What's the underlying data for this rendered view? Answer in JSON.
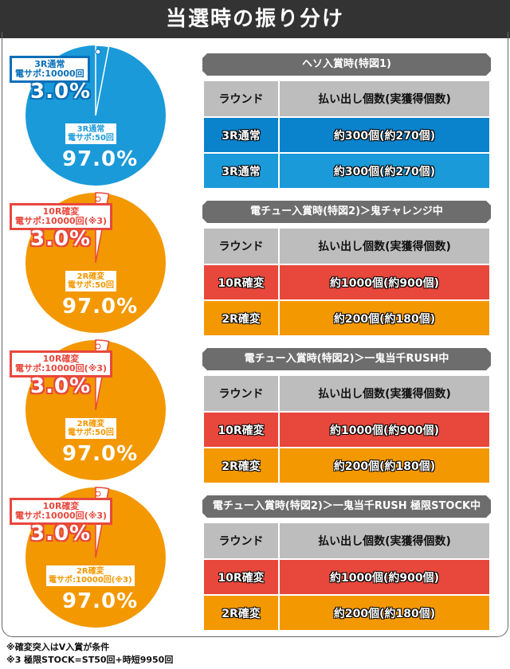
{
  "title": "当選時の振り分け",
  "colors": {
    "blue": "#1a9ad9",
    "blue_dark": "#0a82cc",
    "orange": "#f39800",
    "red": "#e8473c",
    "gray": "#6d6d6d"
  },
  "header": {
    "round": "ラウンド",
    "payout": "払い出し個数(実獲得個数)"
  },
  "sections": [
    {
      "title": "ヘソ入賞時(特図1)",
      "pie": {
        "color": "#1a9ad9",
        "small": {
          "line1": "3R通常",
          "line2": "電サポ:10000回",
          "pct": "3.0%",
          "value": 3.0
        },
        "large": {
          "line1": "3R通常",
          "line2": "電サポ:50回",
          "pct": "97.0%",
          "value": 97.0
        }
      },
      "rows": [
        {
          "round": "3R通常",
          "payout": "約300個(約270個)",
          "color": "#0a82cc"
        },
        {
          "round": "3R通常",
          "payout": "約300個(約270個)",
          "color": "#1a9ad9"
        }
      ]
    },
    {
      "title": "電チュー入賞時(特図2)＞鬼チャレンジ中",
      "pie": {
        "color": "#f39800",
        "small": {
          "line1": "10R確変",
          "line2": "電サポ:10000回(※3)",
          "pct": "3.0%",
          "value": 3.0
        },
        "large": {
          "line1": "2R確変",
          "line2": "電サポ:50回",
          "pct": "97.0%",
          "value": 97.0
        }
      },
      "rows": [
        {
          "round": "10R確変",
          "payout": "約1000個(約900個)",
          "color": "#e8473c"
        },
        {
          "round": "2R確変",
          "payout": "約200個(約180個)",
          "color": "#f39800"
        }
      ]
    },
    {
      "title": "電チュー入賞時(特図2)＞一鬼当千RUSH中",
      "pie": {
        "color": "#f39800",
        "small": {
          "line1": "10R確変",
          "line2": "電サポ:10000回(※3)",
          "pct": "3.0%",
          "value": 3.0
        },
        "large": {
          "line1": "2R確変",
          "line2": "電サポ:50回",
          "pct": "97.0%",
          "value": 97.0
        }
      },
      "rows": [
        {
          "round": "10R確変",
          "payout": "約1000個(約900個)",
          "color": "#e8473c"
        },
        {
          "round": "2R確変",
          "payout": "約200個(約180個)",
          "color": "#f39800"
        }
      ]
    },
    {
      "title": "電チュー入賞時(特図2)＞一鬼当千RUSH 極限STOCK中",
      "pie": {
        "color": "#f39800",
        "small": {
          "line1": "10R確変",
          "line2": "電サポ:10000回(※3)",
          "pct": "3.0%",
          "value": 3.0
        },
        "large": {
          "line1": "2R確変",
          "line2": "電サポ:10000回(※3)",
          "pct": "97.0%",
          "value": 97.0
        }
      },
      "rows": [
        {
          "round": "10R確変",
          "payout": "約1000個(約900個)",
          "color": "#e8473c"
        },
        {
          "round": "2R確変",
          "payout": "約200個(約180個)",
          "color": "#f39800"
        }
      ]
    }
  ],
  "footnotes": [
    "※確変突入はV入賞が条件",
    "※3 極限STOCK=ST50回+時短9950回"
  ]
}
